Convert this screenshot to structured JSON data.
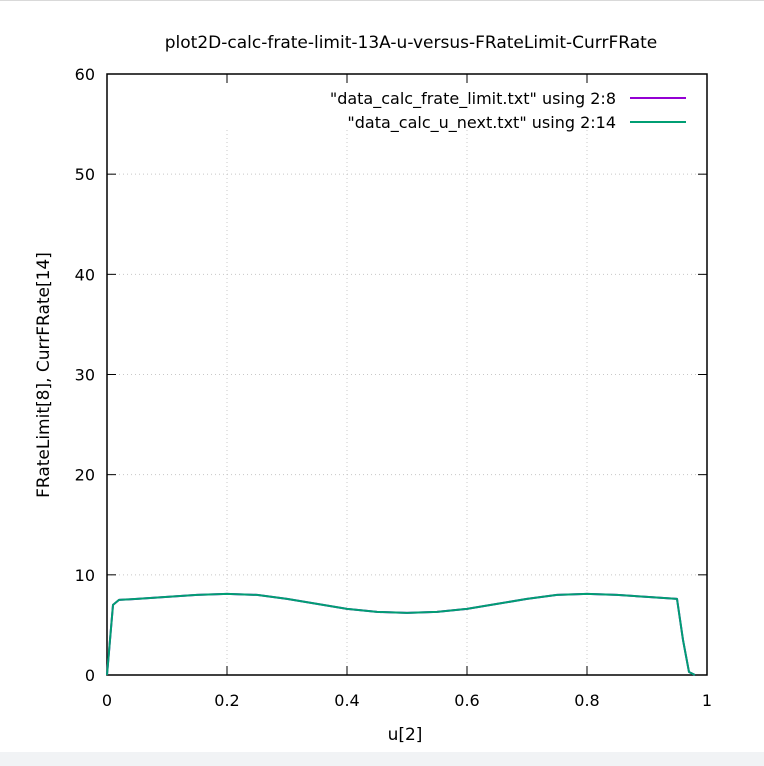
{
  "chart_data": {
    "type": "line",
    "title": "plot2D-calc-frate-limit-13A-u-versus-FRateLimit-CurrFRate",
    "xlabel": "u[2]",
    "ylabel": "FRateLimit[8], CurrFRate[14]",
    "xlim": [
      0,
      1
    ],
    "ylim": [
      0,
      60
    ],
    "xticks": [
      "0",
      "0.2",
      "0.4",
      "0.6",
      "0.8",
      "1"
    ],
    "yticks": [
      "0",
      "10",
      "20",
      "30",
      "40",
      "50",
      "60"
    ],
    "grid": true,
    "legend_position": "top-right",
    "series": [
      {
        "name": "\"data_calc_frate_limit.txt\" using 2:8",
        "color": "#9400d3",
        "x": [
          0,
          0.005,
          0.01,
          0.02,
          0.05,
          0.1,
          0.15,
          0.2,
          0.25,
          0.3,
          0.35,
          0.4,
          0.45,
          0.5,
          0.55,
          0.6,
          0.65,
          0.7,
          0.75,
          0.8,
          0.85,
          0.9,
          0.95,
          0.96,
          0.97,
          0.98
        ],
        "y": [
          0,
          3.5,
          7.0,
          7.5,
          7.6,
          7.8,
          8.0,
          8.1,
          8.0,
          7.6,
          7.1,
          6.6,
          6.3,
          6.2,
          6.3,
          6.6,
          7.1,
          7.6,
          8.0,
          8.1,
          8.0,
          7.8,
          7.6,
          3.5,
          0.3,
          0
        ]
      },
      {
        "name": "\"data_calc_u_next.txt\"  using 2:14",
        "color": "#009e73",
        "x": [
          0,
          0.005,
          0.01,
          0.02,
          0.05,
          0.1,
          0.15,
          0.2,
          0.25,
          0.3,
          0.35,
          0.4,
          0.45,
          0.5,
          0.55,
          0.6,
          0.65,
          0.7,
          0.75,
          0.8,
          0.85,
          0.9,
          0.95,
          0.96,
          0.97,
          0.98
        ],
        "y": [
          0,
          3.5,
          7.0,
          7.5,
          7.6,
          7.8,
          8.0,
          8.1,
          8.0,
          7.6,
          7.1,
          6.6,
          6.3,
          6.2,
          6.3,
          6.6,
          7.1,
          7.6,
          8.0,
          8.1,
          8.0,
          7.8,
          7.6,
          3.5,
          0.3,
          0
        ]
      }
    ]
  }
}
